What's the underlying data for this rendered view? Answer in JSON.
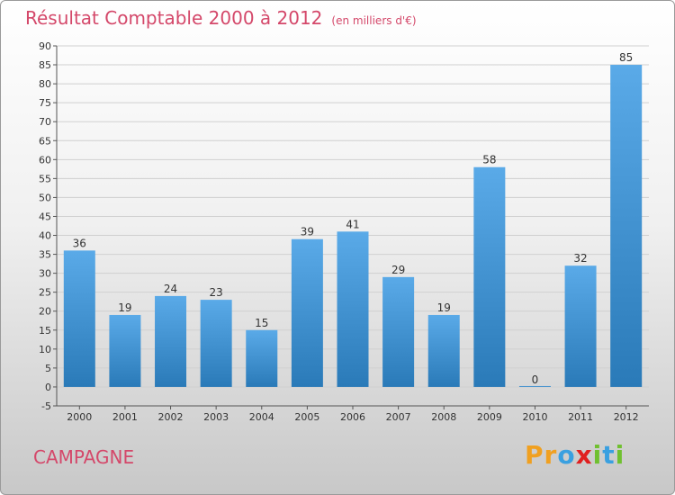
{
  "chart_data": {
    "type": "bar",
    "title": "Résultat Comptable 2000 à 2012",
    "subtitle": "(en milliers d'€)",
    "categories": [
      "2000",
      "2001",
      "2002",
      "2003",
      "2004",
      "2005",
      "2006",
      "2007",
      "2008",
      "2009",
      "2010",
      "2011",
      "2012"
    ],
    "values": [
      36,
      19,
      24,
      23,
      15,
      39,
      41,
      29,
      19,
      58,
      0,
      32,
      85
    ],
    "ylim": [
      -5,
      90
    ],
    "yticks": [
      -5,
      0,
      5,
      10,
      15,
      20,
      25,
      30,
      35,
      40,
      45,
      50,
      55,
      60,
      65,
      70,
      75,
      80,
      85,
      90
    ],
    "grid": true,
    "legend": "none"
  },
  "footer": {
    "place": "CAMPAGNE",
    "brand_letters": [
      "P",
      "r",
      "o",
      "x",
      "i",
      "t",
      "i"
    ]
  },
  "colors": {
    "bar_top": "#5aaae8",
    "bar_bottom": "#2a7ab8",
    "title": "#d4486a",
    "brand": [
      "#f0a020",
      "#f0a020",
      "#3aa0e0",
      "#e02020",
      "#70c030",
      "#3aa0e0",
      "#70c030"
    ]
  }
}
